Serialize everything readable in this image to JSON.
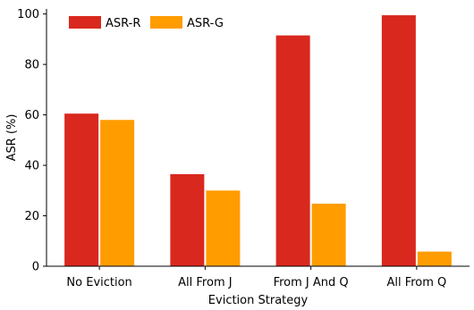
{
  "chart_data": {
    "type": "bar",
    "categories": [
      "No Eviction",
      "All From J",
      "From J And Q",
      "All From Q"
    ],
    "series": [
      {
        "name": "ASR-R",
        "values": [
          60.5,
          36.5,
          91.5,
          99.5
        ],
        "color": "#d9281e"
      },
      {
        "name": "ASR-G",
        "values": [
          58,
          30,
          24.8,
          5.8
        ],
        "color": "#ff9c00"
      }
    ],
    "xlabel": "Eviction Strategy",
    "ylabel": "ASR (%)",
    "ylim": [
      0,
      102
    ],
    "yticks": [
      0,
      20,
      40,
      60,
      80,
      100
    ],
    "grid": false,
    "legend_position": "top-left"
  }
}
